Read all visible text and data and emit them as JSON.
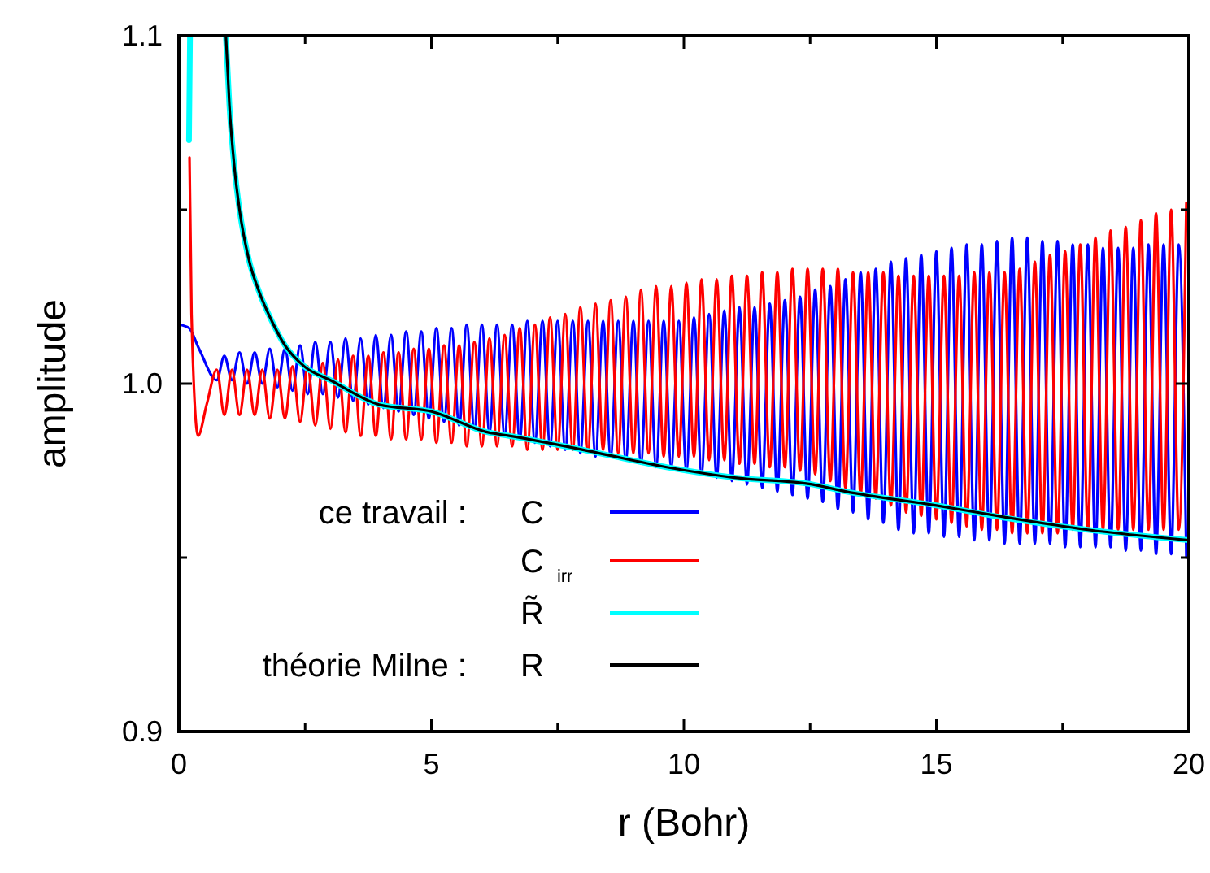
{
  "chart_data": {
    "type": "line",
    "xlabel": "r (Bohr)",
    "ylabel": "amplitude",
    "xlim": [
      0,
      20
    ],
    "ylim": [
      0.9,
      1.1
    ],
    "xticks": [
      0,
      {
        "value": 2.5,
        "label": null
      },
      5,
      {
        "value": 7.5,
        "label": null
      },
      10,
      {
        "value": 12.5,
        "label": null
      },
      15,
      {
        "value": 17.5,
        "label": null
      },
      20
    ],
    "yticks": [
      {
        "value": 0.9,
        "label": "0.9"
      },
      {
        "value": 0.95,
        "label": null
      },
      {
        "value": 1,
        "label": "1.0"
      },
      {
        "value": 1.05,
        "label": null
      },
      {
        "value": 1.1,
        "label": "1.1"
      }
    ],
    "grid": false,
    "legend": "bottom left",
    "line_style": "solid",
    "marker": "none",
    "annotations": [
      "ce travail :",
      "théorie Milne :"
    ],
    "series": [
      {
        "name": "C",
        "color": "#0000ff",
        "x": [
          0,
          0.2,
          0.4,
          0.75,
          0.9,
          1.05,
          1.2,
          1.35,
          1.5,
          1.65,
          1.8,
          1.95,
          2.1,
          2.25,
          2.4,
          2.55,
          2.7,
          2.85,
          3,
          3.15,
          3.3,
          3.45,
          3.6,
          3.75,
          3.9,
          4.05,
          4.2,
          4.35,
          4.5,
          4.65,
          4.8,
          4.95,
          5.1,
          5.25,
          5.4,
          5.55,
          5.7,
          5.85,
          6,
          6.15,
          6.3,
          6.45,
          6.6,
          6.75,
          6.9,
          7.05,
          7.2,
          7.35,
          7.5,
          7.65,
          7.8,
          7.95,
          8.1,
          8.25,
          8.4,
          8.55,
          8.7,
          8.85,
          9,
          9.15,
          9.3,
          9.45,
          9.6,
          9.75,
          9.9,
          10.05,
          10.2,
          10.35,
          10.5,
          10.65,
          10.8,
          10.95,
          11.1,
          11.25,
          11.4,
          11.55,
          11.7,
          11.85,
          12,
          12.15,
          12.3,
          12.45,
          12.6,
          12.75,
          12.9,
          13.05,
          13.2,
          13.35,
          13.5,
          13.65,
          13.8,
          13.95,
          14.1,
          14.25,
          14.4,
          14.55,
          14.7,
          14.85,
          15,
          15.15,
          15.3,
          15.45,
          15.6,
          15.75,
          15.9,
          16.05,
          16.2,
          16.35,
          16.5,
          16.65,
          16.8,
          16.95,
          17.1,
          17.25,
          17.4,
          17.55,
          17.7,
          17.85,
          18,
          18.15,
          18.3,
          18.45,
          18.6,
          18.75,
          18.9,
          19.05,
          19.2,
          19.35,
          19.5,
          19.65,
          19.8,
          19.95
        ],
        "values": [
          1.017,
          1.016,
          1.01,
          1.001,
          1.008,
          1.001,
          1.009,
          1,
          1.009,
          1,
          1.01,
          0.999,
          1.01,
          0.998,
          1.011,
          0.997,
          1.012,
          0.997,
          1.012,
          0.996,
          1.013,
          0.995,
          1.013,
          0.994,
          1.014,
          0.993,
          1.014,
          0.992,
          1.015,
          0.991,
          1.015,
          0.99,
          1.016,
          0.989,
          1.016,
          0.988,
          1.017,
          0.987,
          1.017,
          0.986,
          1.017,
          0.985,
          1.017,
          0.984,
          1.018,
          0.983,
          1.018,
          0.982,
          1.018,
          0.981,
          1.018,
          0.98,
          1.018,
          0.979,
          1.018,
          0.979,
          1.018,
          0.978,
          1.018,
          0.977,
          1.018,
          0.976,
          1.018,
          0.976,
          1.018,
          0.975,
          1.019,
          0.974,
          1.02,
          0.973,
          1.021,
          0.972,
          1.022,
          0.971,
          1.022,
          0.97,
          1.023,
          0.969,
          1.024,
          0.968,
          1.025,
          0.967,
          1.027,
          0.966,
          1.028,
          0.964,
          1.03,
          0.963,
          1.032,
          0.961,
          1.033,
          0.96,
          1.035,
          0.958,
          1.036,
          0.957,
          1.037,
          0.957,
          1.038,
          0.956,
          1.039,
          0.956,
          1.04,
          0.955,
          1.04,
          0.955,
          1.041,
          0.954,
          1.042,
          0.954,
          1.042,
          0.954,
          1.041,
          0.954,
          1.041,
          0.953,
          1.04,
          0.953,
          1.04,
          0.953,
          1.039,
          0.953,
          1.039,
          0.952,
          1.039,
          0.952,
          1.04,
          0.951,
          1.04,
          0.951,
          1.04,
          0.95
        ]
      },
      {
        "name": "C$_{irr}$",
        "color": "#ff0000",
        "x": [
          0.21,
          0.25,
          0.38,
          0.55,
          0.75,
          0.9,
          1.05,
          1.2,
          1.35,
          1.5,
          1.65,
          1.8,
          1.95,
          2.1,
          2.25,
          2.4,
          2.55,
          2.7,
          2.85,
          3,
          3.15,
          3.3,
          3.45,
          3.6,
          3.75,
          3.9,
          4.05,
          4.2,
          4.35,
          4.5,
          4.65,
          4.8,
          4.95,
          5.1,
          5.25,
          5.4,
          5.55,
          5.7,
          5.85,
          6,
          6.15,
          6.3,
          6.45,
          6.6,
          6.75,
          6.9,
          7.05,
          7.2,
          7.35,
          7.5,
          7.65,
          7.8,
          7.95,
          8.1,
          8.25,
          8.4,
          8.55,
          8.7,
          8.85,
          9,
          9.15,
          9.3,
          9.45,
          9.6,
          9.75,
          9.9,
          10.05,
          10.2,
          10.35,
          10.5,
          10.65,
          10.8,
          10.95,
          11.1,
          11.25,
          11.4,
          11.55,
          11.7,
          11.85,
          12,
          12.15,
          12.3,
          12.45,
          12.6,
          12.75,
          12.9,
          13.05,
          13.2,
          13.35,
          13.5,
          13.65,
          13.8,
          13.95,
          14.1,
          14.25,
          14.4,
          14.55,
          14.7,
          14.85,
          15,
          15.15,
          15.3,
          15.45,
          15.6,
          15.75,
          15.9,
          16.05,
          16.2,
          16.35,
          16.5,
          16.65,
          16.8,
          16.95,
          17.1,
          17.25,
          17.4,
          17.55,
          17.7,
          17.85,
          18,
          18.15,
          18.3,
          18.45,
          18.6,
          18.75,
          18.9,
          19.05,
          19.2,
          19.35,
          19.5,
          19.65,
          19.8,
          19.95
        ],
        "values": [
          1.065,
          1.02,
          0.985,
          0.994,
          1.004,
          0.991,
          1.004,
          0.991,
          1.004,
          0.991,
          1.004,
          0.99,
          1.004,
          0.99,
          1.005,
          0.989,
          1.005,
          0.988,
          1.006,
          0.987,
          1.007,
          0.986,
          1.008,
          0.985,
          1.008,
          0.985,
          1.009,
          0.984,
          1.009,
          0.984,
          1.01,
          0.984,
          1.01,
          0.983,
          1.011,
          0.983,
          1.011,
          0.982,
          1.012,
          0.982,
          1.013,
          0.982,
          1.014,
          0.982,
          1.016,
          0.981,
          1.017,
          0.981,
          1.019,
          0.981,
          1.02,
          0.981,
          1.022,
          0.981,
          1.023,
          0.981,
          1.024,
          0.98,
          1.025,
          0.98,
          1.027,
          0.98,
          1.028,
          0.979,
          1.028,
          0.979,
          1.029,
          0.979,
          1.03,
          0.978,
          1.03,
          0.978,
          1.031,
          0.977,
          1.031,
          0.977,
          1.032,
          0.976,
          1.032,
          0.976,
          1.033,
          0.975,
          1.033,
          0.974,
          1.033,
          0.972,
          1.033,
          0.97,
          1.032,
          0.968,
          1.032,
          0.967,
          1.032,
          0.965,
          1.031,
          0.963,
          1.031,
          0.962,
          1.031,
          0.961,
          1.031,
          0.96,
          1.031,
          0.959,
          1.032,
          0.958,
          1.032,
          0.958,
          1.032,
          0.957,
          1.033,
          0.957,
          1.035,
          0.957,
          1.037,
          0.957,
          1.038,
          0.958,
          1.04,
          0.958,
          1.042,
          0.958,
          1.044,
          0.958,
          1.045,
          0.958,
          1.047,
          0.958,
          1.049,
          0.958,
          1.05,
          0.958,
          1.052
        ]
      },
      {
        "name": "R̃",
        "color": "#00ffff",
        "x": [
          0.2,
          0.22,
          0.5,
          0.93,
          1,
          1.1,
          1.2,
          1.38,
          1.6,
          1.84,
          2.1,
          2.48,
          3,
          3.96,
          5,
          6.12,
          6.54,
          8,
          9.66,
          11,
          12.56,
          13.2,
          15,
          16.33,
          18,
          20
        ],
        "values": [
          1.07,
          1.1,
          null,
          1.1,
          1.08,
          1.062,
          1.05,
          1.036,
          1.026,
          1.018,
          1.011,
          1.005,
          1.001,
          0.994,
          0.992,
          0.986,
          0.985,
          0.981,
          0.976,
          0.973,
          0.971,
          0.969,
          0.965,
          0.9615,
          0.958,
          0.955
        ]
      },
      {
        "name": "R",
        "color": "#000000",
        "x": [
          0.93,
          1,
          1.1,
          1.2,
          1.38,
          1.6,
          1.84,
          2.1,
          2.48,
          3,
          3.96,
          5,
          6.12,
          6.54,
          8,
          9.66,
          11,
          12.56,
          13.2,
          15,
          16.33,
          18,
          20
        ],
        "values": [
          1.1,
          1.08,
          1.062,
          1.05,
          1.036,
          1.026,
          1.018,
          1.011,
          1.005,
          1.001,
          0.994,
          0.992,
          0.986,
          0.985,
          0.981,
          0.976,
          0.973,
          0.971,
          0.969,
          0.965,
          0.9617,
          0.958,
          0.955
        ]
      }
    ]
  }
}
